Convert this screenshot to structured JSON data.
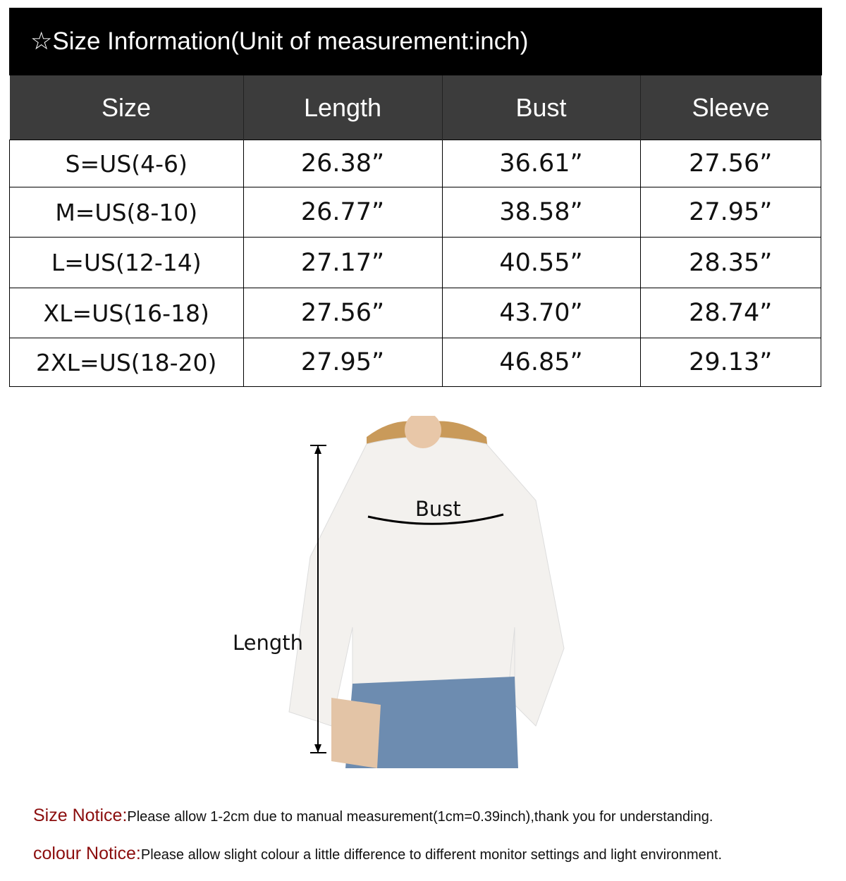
{
  "title": "☆Size Information(Unit of measurement:inch)",
  "table": {
    "headers": [
      "Size",
      "Length",
      "Bust",
      "Sleeve"
    ],
    "rows": [
      [
        "S=US(4-6)",
        "26.38”",
        "36.61”",
        "27.56”"
      ],
      [
        "M=US(8-10)",
        "26.77”",
        "38.58”",
        "27.95”"
      ],
      [
        "L=US(12-14)",
        "27.17”",
        "40.55”",
        "28.35”"
      ],
      [
        "XL=US(16-18)",
        "27.56”",
        "43.70”",
        "28.74”"
      ],
      [
        "2XL=US(18-20)",
        "27.95”",
        "46.85”",
        "29.13”"
      ]
    ]
  },
  "figure": {
    "bust_label": "Bust",
    "length_label": "Length"
  },
  "notices": [
    {
      "key": "Size Notice:",
      "text": "Please allow 1-2cm due to manual measurement(1cm=0.39inch),thank you for understanding."
    },
    {
      "key": "colour Notice:",
      "text": "Please allow slight colour a little difference to different monitor settings and light environment."
    }
  ],
  "colors": {
    "title_bg": "#000000",
    "header_bg": "#3c3c3c",
    "notice_key": "#8b0d0d"
  }
}
